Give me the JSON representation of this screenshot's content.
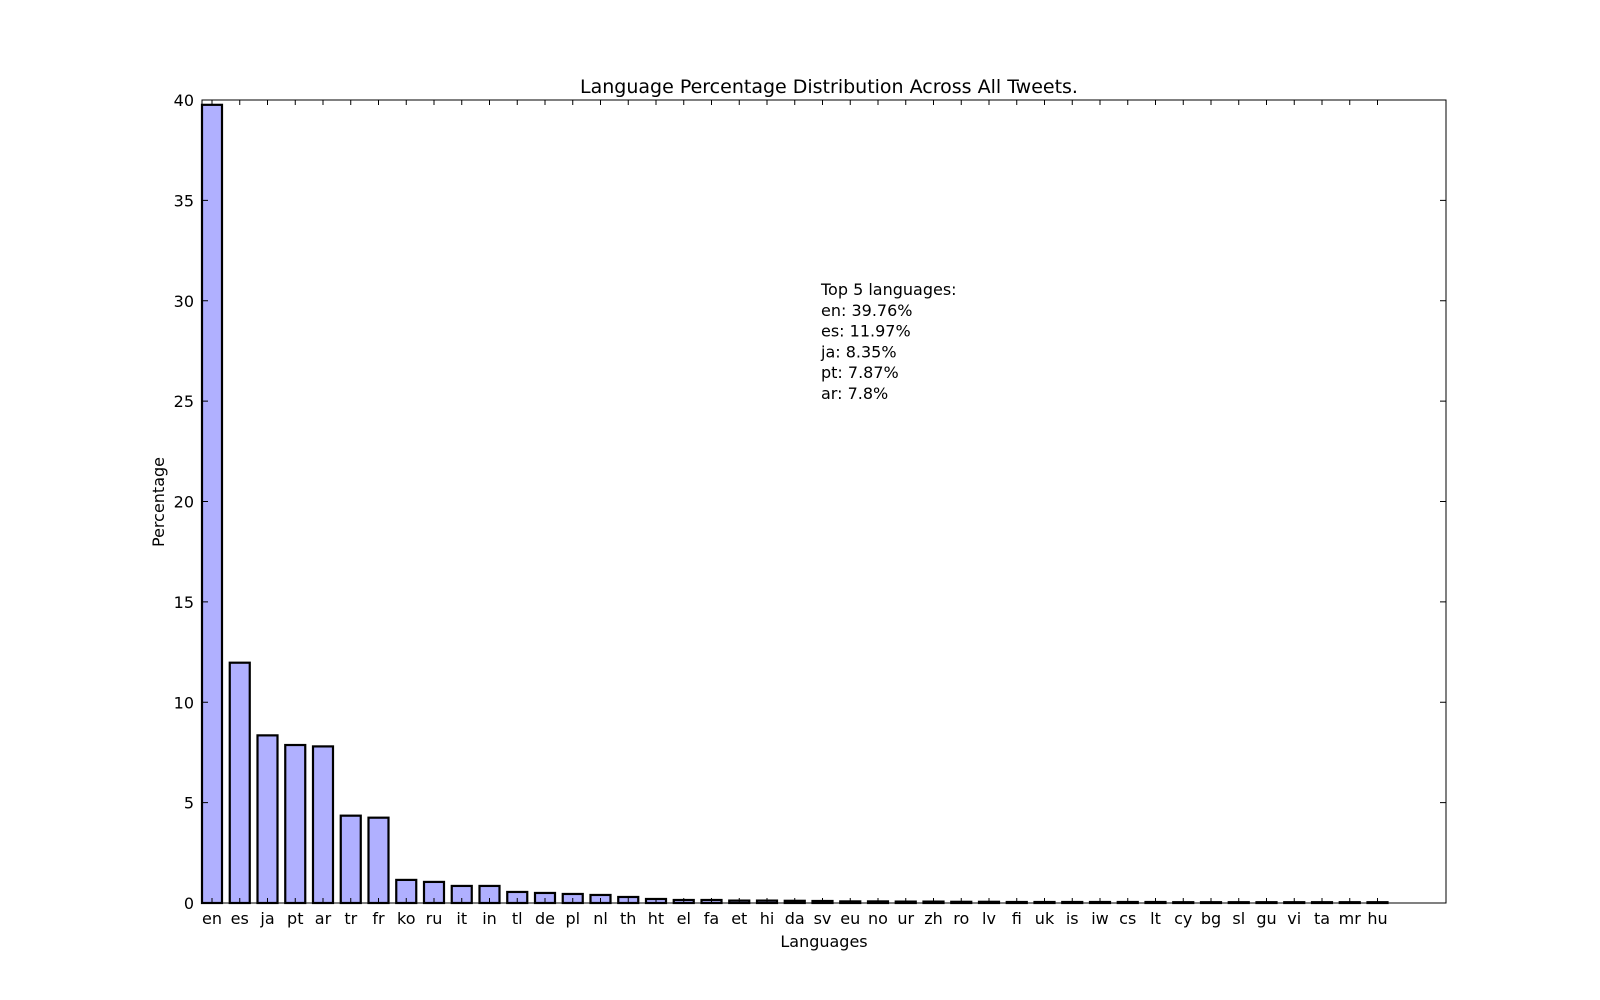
{
  "chart_data": {
    "type": "bar",
    "title": "Language Percentage Distribution Across All Tweets.",
    "xlabel": "Languages",
    "ylabel": "Percentage",
    "ylim": [
      0,
      40
    ],
    "yticks": [
      0,
      5,
      10,
      15,
      20,
      25,
      30,
      35,
      40
    ],
    "grid": false,
    "bar_color": "#b0b0ff",
    "edge_color": "#000000",
    "categories": [
      "en",
      "es",
      "ja",
      "pt",
      "ar",
      "tr",
      "fr",
      "ko",
      "ru",
      "it",
      "in",
      "tl",
      "de",
      "pl",
      "nl",
      "th",
      "ht",
      "el",
      "fa",
      "et",
      "hi",
      "da",
      "sv",
      "eu",
      "no",
      "ur",
      "zh",
      "ro",
      "lv",
      "fi",
      "uk",
      "is",
      "iw",
      "cs",
      "lt",
      "cy",
      "bg",
      "sl",
      "gu",
      "vi",
      "ta",
      "mr",
      "hu"
    ],
    "values": [
      39.76,
      11.97,
      8.35,
      7.87,
      7.8,
      4.35,
      4.25,
      1.15,
      1.05,
      0.85,
      0.85,
      0.55,
      0.5,
      0.45,
      0.4,
      0.3,
      0.2,
      0.15,
      0.15,
      0.12,
      0.12,
      0.11,
      0.1,
      0.08,
      0.08,
      0.07,
      0.07,
      0.06,
      0.06,
      0.05,
      0.05,
      0.05,
      0.05,
      0.05,
      0.05,
      0.03,
      0.03,
      0.03,
      0.03,
      0.03,
      0.02,
      0.02,
      0.02
    ],
    "annotation": {
      "lines": [
        "Top 5 languages:",
        "en: 39.76%",
        "es: 11.97%",
        "ja: 8.35%",
        "pt: 7.87%",
        "ar: 7.8%"
      ]
    }
  }
}
